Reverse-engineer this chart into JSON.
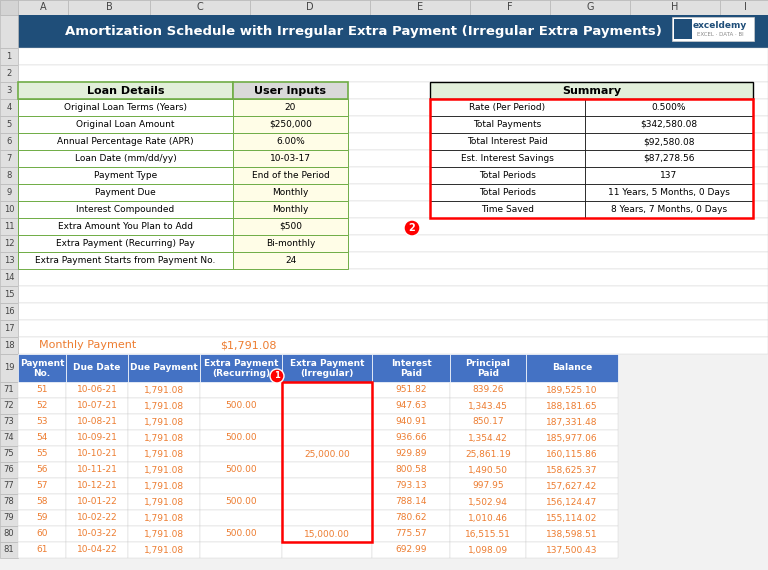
{
  "title": "Amortization Schedule with Irregular Extra Payment (Irregular Extra Payments)",
  "title_bg": "#1F4E79",
  "title_color": "#FFFFFF",
  "logo_text": "exceldemy",
  "loan_header_bg": "#E2EFDA",
  "loan_header_border": "#70AD47",
  "loan_rows": [
    [
      "Original Loan Terms (Years)",
      "20"
    ],
    [
      "Original Loan Amount",
      "$250,000"
    ],
    [
      "Annual Percentage Rate (APR)",
      "6.00%"
    ],
    [
      "Loan Date (mm/dd/yy)",
      "10-03-17"
    ],
    [
      "Payment Type",
      "End of the Period"
    ],
    [
      "Payment Due",
      "Monthly"
    ],
    [
      "Interest Compounded",
      "Monthly"
    ],
    [
      "Extra Amount You Plan to Add",
      "$500"
    ],
    [
      "Extra Payment (Recurring) Pay",
      "Bi-monthly"
    ],
    [
      "Extra Payment Starts from Payment No.",
      "24"
    ]
  ],
  "summary_rows": [
    [
      "Rate (Per Period)",
      "0.500%"
    ],
    [
      "Total Payments",
      "$342,580.08"
    ],
    [
      "Total Interest Paid",
      "$92,580.08"
    ],
    [
      "Est. Interest Savings",
      "$87,278.56"
    ],
    [
      "Total Periods",
      "137"
    ],
    [
      "Total Periods",
      "11 Years, 5 Months, 0 Days"
    ],
    [
      "Time Saved",
      "8 Years, 7 Months, 0 Days"
    ]
  ],
  "monthly_payment_label": "Monthly Payment",
  "monthly_payment_value": "$1,791.08",
  "table_headers": [
    "Payment\nNo.",
    "Due Date",
    "Due Payment",
    "Extra Payment\n(Recurring)",
    "Extra Payment\n(Irregular)",
    "Interest\nPaid",
    "Principal\nPaid",
    "Balance"
  ],
  "table_rows": [
    [
      "51",
      "10-06-21",
      "1,791.08",
      "",
      "",
      "951.82",
      "839.26",
      "189,525.10"
    ],
    [
      "52",
      "10-07-21",
      "1,791.08",
      "500.00",
      "",
      "947.63",
      "1,343.45",
      "188,181.65"
    ],
    [
      "53",
      "10-08-21",
      "1,791.08",
      "",
      "",
      "940.91",
      "850.17",
      "187,331.48"
    ],
    [
      "54",
      "10-09-21",
      "1,791.08",
      "500.00",
      "",
      "936.66",
      "1,354.42",
      "185,977.06"
    ],
    [
      "55",
      "10-10-21",
      "1,791.08",
      "",
      "25,000.00",
      "929.89",
      "25,861.19",
      "160,115.86"
    ],
    [
      "56",
      "10-11-21",
      "1,791.08",
      "500.00",
      "",
      "800.58",
      "1,490.50",
      "158,625.37"
    ],
    [
      "57",
      "10-12-21",
      "1,791.08",
      "",
      "",
      "793.13",
      "997.95",
      "157,627.42"
    ],
    [
      "58",
      "10-01-22",
      "1,791.08",
      "500.00",
      "",
      "788.14",
      "1,502.94",
      "156,124.47"
    ],
    [
      "59",
      "10-02-22",
      "1,791.08",
      "",
      "",
      "780.62",
      "1,010.46",
      "155,114.02"
    ],
    [
      "60",
      "10-03-22",
      "1,791.08",
      "500.00",
      "15,000.00",
      "775.57",
      "16,515.51",
      "138,598.51"
    ],
    [
      "61",
      "10-04-22",
      "1,791.08",
      "",
      "",
      "692.99",
      "1,098.09",
      "137,500.43"
    ]
  ],
  "row_numbers": [
    "71",
    "72",
    "73",
    "74",
    "75",
    "76",
    "77",
    "78",
    "79",
    "80",
    "81"
  ]
}
